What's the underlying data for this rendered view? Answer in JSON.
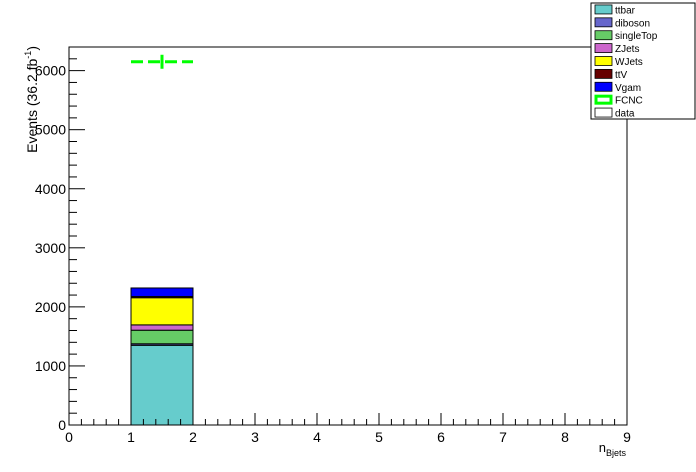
{
  "chart_data": {
    "type": "bar",
    "stacked": true,
    "xlabel_main": "n",
    "xlabel_sub": "Bjets",
    "ylabel_main": "Events (36.2 fb",
    "ylabel_sup": "-1",
    "ylabel_close": ")",
    "xlim": [
      0,
      9
    ],
    "ylim": [
      0,
      6400
    ],
    "x_ticks": [
      "0",
      "1",
      "2",
      "3",
      "4",
      "5",
      "6",
      "7",
      "8",
      "9"
    ],
    "y_ticks": [
      "0",
      "1000",
      "2000",
      "3000",
      "4000",
      "5000",
      "6000"
    ],
    "bin": [
      1,
      2
    ],
    "series": [
      {
        "name": "ttbar",
        "value": 1350,
        "color": "#66cccc"
      },
      {
        "name": "diboson",
        "value": 25,
        "color": "#6666cc"
      },
      {
        "name": "singleTop",
        "value": 230,
        "color": "#66cc66"
      },
      {
        "name": "ZJets",
        "value": 90,
        "color": "#cc66cc"
      },
      {
        "name": "WJets",
        "value": 460,
        "color": "#ffff00"
      },
      {
        "name": "ttV",
        "value": 20,
        "color": "#660000"
      },
      {
        "name": "Vgam",
        "value": 145,
        "color": "#0000ff"
      }
    ],
    "overlay": {
      "name": "FCNC",
      "x": 1.5,
      "y": 6150,
      "xerr": [
        1,
        2
      ],
      "color": "#00ff00"
    },
    "legend": {
      "placement": "top-right",
      "entries": [
        {
          "name": "ttbar",
          "color": "#66cccc",
          "style": "fill"
        },
        {
          "name": "diboson",
          "color": "#6666cc",
          "style": "fill"
        },
        {
          "name": "singleTop",
          "color": "#66cc66",
          "style": "fill"
        },
        {
          "name": "ZJets",
          "color": "#cc66cc",
          "style": "fill"
        },
        {
          "name": "WJets",
          "color": "#ffff00",
          "style": "fill"
        },
        {
          "name": "ttV",
          "color": "#660000",
          "style": "fill"
        },
        {
          "name": "Vgam",
          "color": "#0000ff",
          "style": "fill"
        },
        {
          "name": "FCNC",
          "color": "#00ff00",
          "style": "outline"
        },
        {
          "name": "data",
          "color": "#ffffff",
          "style": "fill"
        }
      ]
    }
  }
}
